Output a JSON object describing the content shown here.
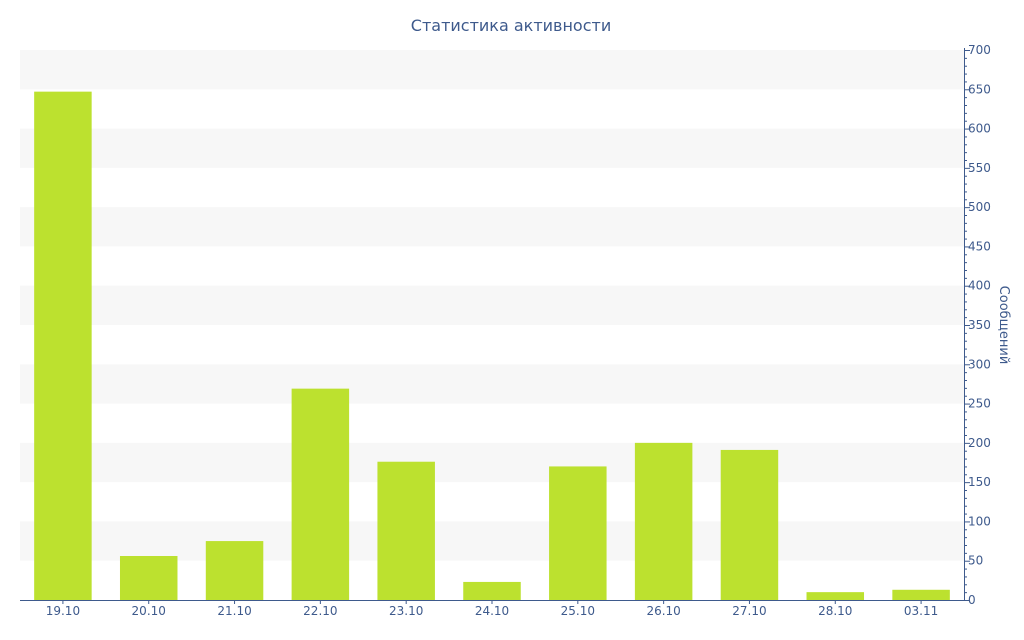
{
  "chart_data": {
    "type": "bar",
    "title": "Статистика активности",
    "xlabel": "",
    "ylabel": "Сообщений",
    "categories": [
      "19.10",
      "20.10",
      "21.10",
      "22.10",
      "23.10",
      "24.10",
      "25.10",
      "26.10",
      "27.10",
      "28.10",
      "03.11"
    ],
    "values": [
      647,
      56,
      75,
      269,
      176,
      23,
      170,
      200,
      191,
      10,
      13
    ],
    "ylim": [
      0,
      700
    ],
    "yticks": [
      0,
      50,
      100,
      150,
      200,
      250,
      300,
      350,
      400,
      450,
      500,
      550,
      600,
      650,
      700
    ],
    "y_axis_position": "right",
    "grid": "alternating horizontal bands",
    "legend": "none",
    "colors": {
      "bar": "#bce12f",
      "band": "#f7f7f7",
      "axis": "#3e5a8c",
      "text": "#3e5a8c"
    }
  }
}
